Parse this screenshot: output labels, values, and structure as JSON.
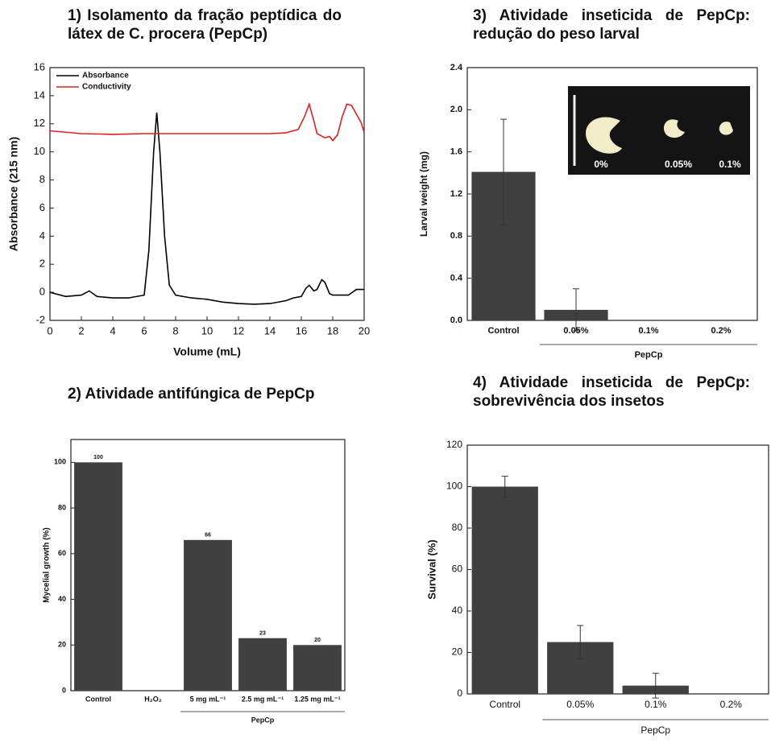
{
  "chart_data": [
    {
      "type": "line",
      "title": "1) Isolamento da fração peptídica do látex de C. procera (PepCp)",
      "x_label": "Volume (mL)",
      "y_label": "Absorbance (215 nm)",
      "xlim": [
        0,
        20
      ],
      "xticks": [
        0,
        2,
        4,
        6,
        8,
        10,
        12,
        14,
        16,
        18,
        20
      ],
      "ylim": [
        -2,
        16
      ],
      "yticks": [
        -2,
        0,
        2,
        4,
        6,
        8,
        10,
        12,
        14,
        16
      ],
      "legend": "upper left",
      "series": [
        {
          "name": "Absorbance",
          "color": "#000000",
          "x": [
            0,
            1,
            2,
            2.5,
            3,
            4,
            5,
            6,
            6.3,
            6.6,
            6.8,
            7,
            7.3,
            7.6,
            8,
            9,
            10,
            11,
            12,
            13,
            14,
            15,
            15.5,
            16,
            16.3,
            16.5,
            16.8,
            17,
            17.3,
            17.5,
            17.8,
            18,
            19,
            19.5,
            20
          ],
          "values": [
            0,
            -0.3,
            -0.2,
            0.1,
            -0.3,
            -0.4,
            -0.4,
            -0.2,
            3,
            10,
            12.8,
            10,
            4,
            0.5,
            -0.2,
            -0.4,
            -0.5,
            -0.7,
            -0.8,
            -0.85,
            -0.8,
            -0.6,
            -0.4,
            -0.3,
            0.3,
            0.5,
            0.1,
            0.2,
            0.9,
            0.7,
            -0.1,
            -0.2,
            -0.2,
            0.2,
            0.2
          ]
        },
        {
          "name": "Conductivity",
          "color": "#e02020",
          "x": [
            0,
            2,
            4,
            6,
            8,
            10,
            12,
            14,
            15,
            15.8,
            16.2,
            16.5,
            16.8,
            17,
            17.5,
            17.8,
            18,
            18.3,
            18.6,
            18.9,
            19.2,
            19.5,
            19.8,
            20
          ],
          "values": [
            11.5,
            11.3,
            11.25,
            11.3,
            11.3,
            11.3,
            11.3,
            11.3,
            11.35,
            11.6,
            12.5,
            13.4,
            12.2,
            11.3,
            11.0,
            11.1,
            10.8,
            11.2,
            12.5,
            13.4,
            13.3,
            12.7,
            12.1,
            11.4
          ]
        }
      ]
    },
    {
      "type": "bar",
      "title": "2) Atividade antifúngica de PepCp",
      "y_label": "Mycelial growth (%)",
      "categories": [
        "Control",
        "H₂O₂",
        "5 mg mL⁻¹",
        "2.5 mg mL⁻¹",
        "1.25 mg mL⁻¹"
      ],
      "values": [
        100,
        null,
        66,
        23,
        20
      ],
      "show_values": true,
      "color": "#404040",
      "ylim": [
        0,
        110
      ],
      "yticks": [
        0,
        20,
        40,
        60,
        80,
        100
      ],
      "group_label": "PepCp",
      "group_categories": [
        "5 mg mL⁻¹",
        "2.5 mg mL⁻¹",
        "1.25 mg mL⁻¹"
      ]
    },
    {
      "type": "bar",
      "title": "3) Atividade inseticida de PepCp: redução do peso larval",
      "y_label": "Larval weight (mg)",
      "categories": [
        "Control",
        "0.05%",
        "0.1%",
        "0.2%"
      ],
      "values": [
        1.41,
        0.1,
        0,
        0
      ],
      "errors": [
        0.5,
        0.2,
        null,
        null
      ],
      "color": "#404040",
      "ylim": [
        0,
        2.4
      ],
      "yticks": [
        {
          "value": 0,
          "label": "0.0"
        },
        0.4,
        0.8,
        1.2,
        1.6,
        {
          "value": 2,
          "label": "2.0"
        },
        2.4
      ],
      "group_label": "PepCp",
      "group_categories": [
        "0.05%",
        "0.1%",
        "0.2%"
      ],
      "inset_labels": [
        "0%",
        "0.05%",
        "0.1%"
      ]
    },
    {
      "type": "bar",
      "title": "4) Atividade inseticida de PepCp: sobrevivência dos insetos",
      "y_label": "Survival (%)",
      "categories": [
        "Control",
        "0.05%",
        "0.1%",
        "0.2%"
      ],
      "values": [
        100,
        25,
        4,
        0
      ],
      "errors": [
        5,
        8,
        6,
        null
      ],
      "color": "#404040",
      "ylim": [
        0,
        120
      ],
      "yticks": [
        0,
        20,
        40,
        60,
        80,
        100,
        120
      ],
      "group_label": "PepCp",
      "group_categories": [
        "0.05%",
        "0.1%",
        "0.2%"
      ]
    }
  ]
}
